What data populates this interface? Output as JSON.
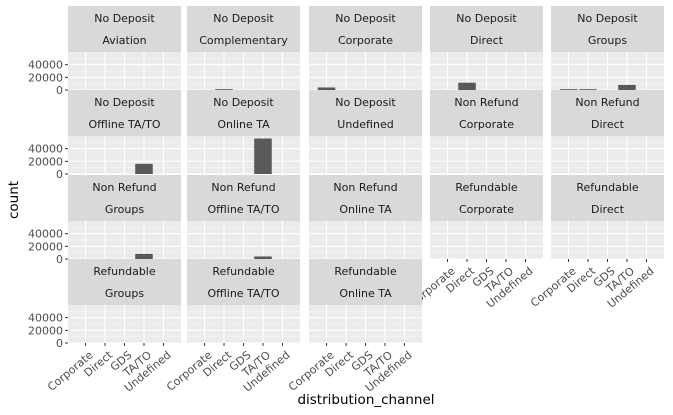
{
  "chart_data": {
    "type": "bar",
    "facet_by": [
      "deposit_type",
      "customer_type"
    ],
    "xlabel": "distribution_channel",
    "ylabel": "count",
    "categories": [
      "Corporate",
      "Direct",
      "GDS",
      "TA/TO",
      "Undefined"
    ],
    "ylim": [
      0,
      60000
    ],
    "yticks": [
      "0",
      "20000",
      "40000"
    ],
    "grid": true,
    "panels": [
      {
        "row1": "No Deposit",
        "row2": "Aviation",
        "values": [
          0,
          0,
          0,
          0,
          0
        ]
      },
      {
        "row1": "No Deposit",
        "row2": "Complementary",
        "values": [
          0,
          600,
          0,
          0,
          0
        ]
      },
      {
        "row1": "No Deposit",
        "row2": "Corporate",
        "values": [
          4000,
          0,
          0,
          0,
          0
        ]
      },
      {
        "row1": "No Deposit",
        "row2": "Direct",
        "values": [
          0,
          11500,
          0,
          0,
          0
        ]
      },
      {
        "row1": "No Deposit",
        "row2": "Groups",
        "values": [
          400,
          300,
          0,
          8000,
          0
        ]
      },
      {
        "row1": "No Deposit",
        "row2": "Offline TA/TO",
        "values": [
          0,
          0,
          0,
          16000,
          0
        ]
      },
      {
        "row1": "No Deposit",
        "row2": "Online TA",
        "values": [
          0,
          0,
          0,
          56000,
          0
        ]
      },
      {
        "row1": "No Deposit",
        "row2": "Undefined",
        "values": [
          0,
          0,
          0,
          0,
          0
        ]
      },
      {
        "row1": "Non Refund",
        "row2": "Corporate",
        "values": [
          0,
          0,
          0,
          0,
          0
        ]
      },
      {
        "row1": "Non Refund",
        "row2": "Direct",
        "values": [
          0,
          0,
          0,
          0,
          0
        ]
      },
      {
        "row1": "Non Refund",
        "row2": "Groups",
        "values": [
          0,
          0,
          0,
          8000,
          0
        ]
      },
      {
        "row1": "Non Refund",
        "row2": "Offline TA/TO",
        "values": [
          0,
          0,
          0,
          4000,
          0
        ]
      },
      {
        "row1": "Non Refund",
        "row2": "Online TA",
        "values": [
          0,
          0,
          0,
          0,
          0
        ]
      },
      {
        "row1": "Refundable",
        "row2": "Corporate",
        "values": [
          0,
          0,
          0,
          0,
          0
        ]
      },
      {
        "row1": "Refundable",
        "row2": "Direct",
        "values": [
          0,
          0,
          0,
          0,
          0
        ]
      },
      {
        "row1": "Refundable",
        "row2": "Groups",
        "values": [
          0,
          0,
          0,
          0,
          0
        ]
      },
      {
        "row1": "Refundable",
        "row2": "Offline TA/TO",
        "values": [
          0,
          0,
          0,
          0,
          0
        ]
      },
      {
        "row1": "Refundable",
        "row2": "Online TA",
        "values": [
          0,
          0,
          0,
          0,
          0
        ]
      }
    ]
  }
}
